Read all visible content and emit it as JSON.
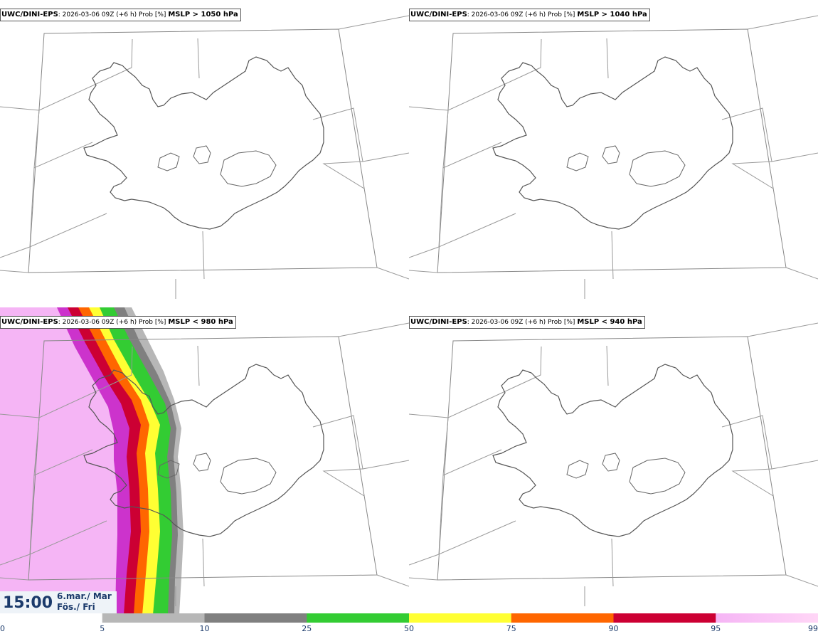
{
  "panels": [
    {
      "model": "UWC/DINI-EPS",
      "info": ": 2026-03-06 09Z (+6 h) Prob [%] ",
      "field": "MSLP > 1050 hPa"
    },
    {
      "model": "UWC/DINI-EPS",
      "info": ": 2026-03-06 09Z (+6 h) Prob [%] ",
      "field": "MSLP > 1040 hPa"
    },
    {
      "model": "UWC/DINI-EPS",
      "info": ": 2026-03-06 09Z (+6 h) Prob [%] ",
      "field": "MSLP < 980 hPa"
    },
    {
      "model": "UWC/DINI-EPS",
      "info": ": 2026-03-06 09Z (+6 h) Prob [%] ",
      "field": "MSLP < 940 hPa"
    }
  ],
  "time_box": {
    "time": "15:00",
    "date": "6.mar./ Mar",
    "day": "Fös./ Fri"
  },
  "colorbar": {
    "ticks": [
      "0",
      "5",
      "10",
      "25",
      "50",
      "75",
      "90",
      "95",
      "99"
    ],
    "colors": [
      "#ffffff",
      "#b7b7b7",
      "#808080",
      "#33cc33",
      "#ffff33",
      "#ff6600",
      "#cc0033",
      "#cc33cc",
      "#f5b5f5"
    ]
  }
}
